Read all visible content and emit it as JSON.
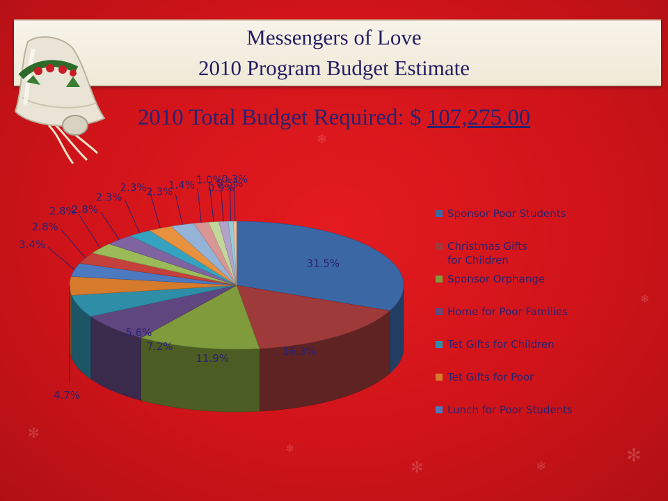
{
  "header": {
    "title_line1": "Messengers of Love",
    "title_line2": "2010 Program Budget Estimate"
  },
  "budget": {
    "label": "2010 Total Budget Required:",
    "currency": "$",
    "amount": "107,275.00"
  },
  "colors": {
    "background": "#d0141a",
    "title_text": "#241d63",
    "banner": "#f4efe2"
  },
  "chart_data": {
    "type": "pie",
    "title": "",
    "slices": [
      {
        "label": "Sponsor Poor Students",
        "value": 31.5,
        "value_label": "31.5%",
        "color": "#3b67a5"
      },
      {
        "label": "Christmas Gifts for Children",
        "value": 16.3,
        "value_label": "16.3%",
        "color": "#9e3b3a"
      },
      {
        "label": "Sponsor Orphange",
        "value": 11.9,
        "value_label": "11.9%",
        "color": "#7f9b3c"
      },
      {
        "label": "Home for Poor Families",
        "value": 7.2,
        "value_label": "7.2%",
        "color": "#60467f"
      },
      {
        "label": "Tet Gifts for Children",
        "value": 5.6,
        "value_label": "5.6%",
        "color": "#2e8ea8"
      },
      {
        "label": "Tet Gifts for Poor",
        "value": 4.7,
        "value_label": "4.7%",
        "color": "#d67a2c"
      },
      {
        "label": "Lunch for Poor Students",
        "value": 3.4,
        "value_label": "3.4%",
        "color": "#4c79c0"
      },
      {
        "label": "",
        "value": 2.8,
        "value_label": "2.8%",
        "color": "#c4403c"
      },
      {
        "label": "",
        "value": 2.8,
        "value_label": "2.8%",
        "color": "#9bbb59"
      },
      {
        "label": "",
        "value": 2.8,
        "value_label": "2.8%",
        "color": "#8064a2"
      },
      {
        "label": "",
        "value": 2.3,
        "value_label": "2.3%",
        "color": "#35a3c0"
      },
      {
        "label": "",
        "value": 2.3,
        "value_label": "2.3%",
        "color": "#e8913f"
      },
      {
        "label": "",
        "value": 2.3,
        "value_label": "2.3%",
        "color": "#95b3d7"
      },
      {
        "label": "",
        "value": 1.4,
        "value_label": "1.4%",
        "color": "#d99694"
      },
      {
        "label": "",
        "value": 1.0,
        "value_label": "1.0%",
        "color": "#c3d69b"
      },
      {
        "label": "",
        "value": 0.9,
        "value_label": "0.9%",
        "color": "#b3a2c7"
      },
      {
        "label": "",
        "value": 0.5,
        "value_label": "0.5%",
        "color": "#93cddd"
      },
      {
        "label": "",
        "value": 0.3,
        "value_label": "0.3%",
        "color": "#fac090"
      }
    ],
    "legend": {
      "placement": "right",
      "entries": [
        "Sponsor Poor Students",
        "Christmas Gifts for Children",
        "Sponsor Orphange",
        "Home for Poor Families",
        "Tet Gifts for Children",
        "Tet Gifts for Poor",
        "Lunch for Poor Students"
      ]
    }
  }
}
